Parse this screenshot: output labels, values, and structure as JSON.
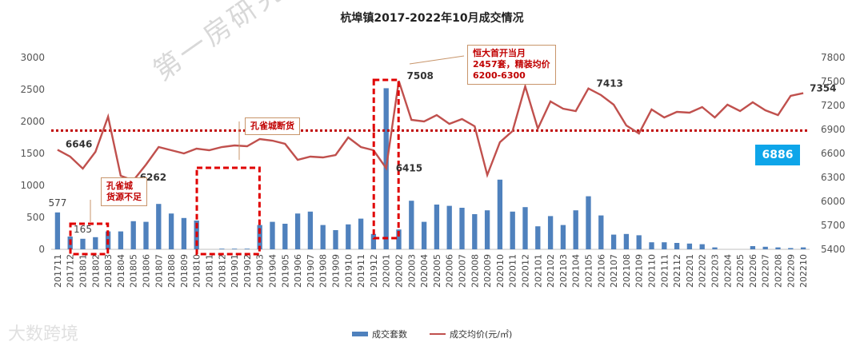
{
  "chart_data": {
    "type": "bar",
    "title": "杭埠镇2017-2022年10月成交情况",
    "categories": [
      "201711",
      "201712",
      "201801",
      "201802",
      "201803",
      "201804",
      "201805",
      "201806",
      "201807",
      "201808",
      "201809",
      "201810",
      "201811",
      "201812",
      "201901",
      "201902",
      "201903",
      "201904",
      "201905",
      "201906",
      "201907",
      "201908",
      "201909",
      "201910",
      "201911",
      "201912",
      "202001",
      "202002",
      "202003",
      "202004",
      "202005",
      "202006",
      "202007",
      "202008",
      "202009",
      "202010",
      "202011",
      "202012",
      "202101",
      "202102",
      "202103",
      "202104",
      "202105",
      "202106",
      "202107",
      "202108",
      "202109",
      "202110",
      "202111",
      "202112",
      "202201",
      "202202",
      "202203",
      "202204",
      "202205",
      "202206",
      "202207",
      "202208",
      "202209",
      "202210"
    ],
    "series": [
      {
        "name": "成交套数",
        "axis": "left",
        "type": "bar",
        "color": "#4f81bd",
        "values": [
          577,
          200,
          165,
          190,
          280,
          280,
          440,
          430,
          710,
          560,
          490,
          450,
          0,
          10,
          10,
          10,
          380,
          430,
          400,
          560,
          590,
          380,
          300,
          390,
          480,
          240,
          2520,
          310,
          760,
          430,
          700,
          680,
          650,
          550,
          610,
          1090,
          590,
          660,
          360,
          520,
          380,
          610,
          830,
          530,
          230,
          240,
          220,
          110,
          110,
          100,
          90,
          80,
          30,
          0,
          0,
          50,
          40,
          30,
          20,
          30
        ]
      },
      {
        "name": "成交均价(元/㎡)",
        "axis": "right",
        "type": "line",
        "color": "#c0504d",
        "values": [
          6646,
          6560,
          6410,
          6620,
          7060,
          6320,
          6262,
          6460,
          6680,
          6640,
          6600,
          6660,
          6640,
          6680,
          6700,
          6690,
          6780,
          6760,
          6720,
          6520,
          6560,
          6550,
          6580,
          6800,
          6680,
          6640,
          6415,
          7508,
          7020,
          7000,
          7080,
          6970,
          7030,
          6940,
          6330,
          6740,
          6880,
          7440,
          6910,
          7250,
          7160,
          7130,
          7413,
          7330,
          7210,
          6950,
          6850,
          7150,
          7050,
          7120,
          7110,
          7180,
          7050,
          7210,
          7130,
          7240,
          7140,
          7080,
          7320,
          7354
        ]
      }
    ],
    "ylim_left": [
      0,
      3000
    ],
    "yticks_left": [
      0,
      500,
      1000,
      1500,
      2000,
      2500,
      3000
    ],
    "ylim_right": [
      5400,
      7800
    ],
    "yticks_right": [
      5400,
      5700,
      6000,
      6300,
      6600,
      6900,
      7200,
      7500,
      7800
    ],
    "reference_line": {
      "axis": "right",
      "value": 6886,
      "label": "6886",
      "color": "#c00000"
    },
    "data_labels": [
      {
        "series": 0,
        "index": 0,
        "text": "577"
      },
      {
        "series": 0,
        "index": 2,
        "text": "165"
      },
      {
        "series": 1,
        "index": 0,
        "text": "6646"
      },
      {
        "series": 1,
        "index": 6,
        "text": "6262"
      },
      {
        "series": 1,
        "index": 26,
        "text": "6415"
      },
      {
        "series": 1,
        "index": 27,
        "text": "7508"
      },
      {
        "series": 1,
        "index": 42,
        "text": "7413"
      },
      {
        "series": 1,
        "index": 59,
        "text": "7354"
      }
    ],
    "legend": {
      "position": "bottom",
      "items": [
        "成交套数",
        "成交均价(元/㎡)"
      ]
    },
    "grid": false
  },
  "annotations": {
    "note_kongque_short": [
      "孔雀城",
      "货源不足"
    ],
    "note_kongque_out": "孔雀城断货",
    "note_hengda": [
      "恒大首开当月",
      "2457套，精装均价",
      "6200-6300"
    ]
  },
  "watermark": "第一房研究院",
  "logo": "大数跨境"
}
